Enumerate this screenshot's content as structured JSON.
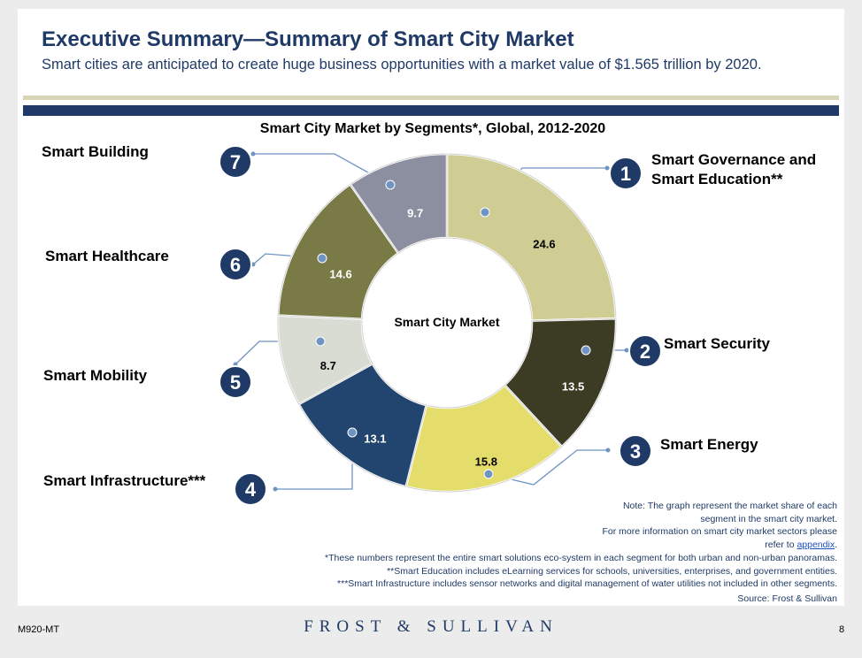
{
  "slide": {
    "title": "Executive Summary—Summary of Smart City Market",
    "subtitle": "Smart cities are anticipated to create huge business opportunities with a market value of $1.565 trillion by 2020."
  },
  "chart_data": {
    "type": "pie",
    "title": "Smart City Market by Segments*, Global, 2012-2020",
    "center_label": "Smart City Market",
    "segments": [
      {
        "number": "1",
        "name": "Smart Governance and Smart Education**",
        "value": 24.6,
        "color": "#cfcc94"
      },
      {
        "number": "2",
        "name": "Smart Security",
        "value": 13.5,
        "color": "#3c3c24"
      },
      {
        "number": "3",
        "name": "Smart Energy",
        "value": 15.8,
        "color": "#e4dd6c"
      },
      {
        "number": "4",
        "name": "Smart Infrastructure***",
        "value": 13.1,
        "color": "#22456f"
      },
      {
        "number": "5",
        "name": "Smart Mobility",
        "value": 8.7,
        "color": "#d9dcd2"
      },
      {
        "number": "6",
        "name": "Smart Healthcare",
        "value": 14.6,
        "color": "#7a7a46"
      },
      {
        "number": "7",
        "name": "Smart Building",
        "value": 9.7,
        "color": "#8c8fa0"
      }
    ]
  },
  "notes": {
    "line1": "Note: The graph represent the market share of each",
    "line2": "segment in the smart city market.",
    "line3": "For more information on smart city market sectors please",
    "line4_prefix": "refer to",
    "line4_link": "appendix",
    "line4_suffix": "."
  },
  "footnotes": [
    "*These numbers represent the entire smart solutions eco-system in each segment for both urban and non-urban panoramas.",
    "**Smart Education includes eLearning services for schools, universities, enterprises, and government entities.",
    "***Smart Infrastructure includes sensor networks and digital management of water utilities not included in other segments."
  ],
  "source": "Source: Frost & Sullivan",
  "footer": {
    "code": "M920-MT",
    "brand": "FROST & SULLIVAN",
    "page": "8"
  }
}
